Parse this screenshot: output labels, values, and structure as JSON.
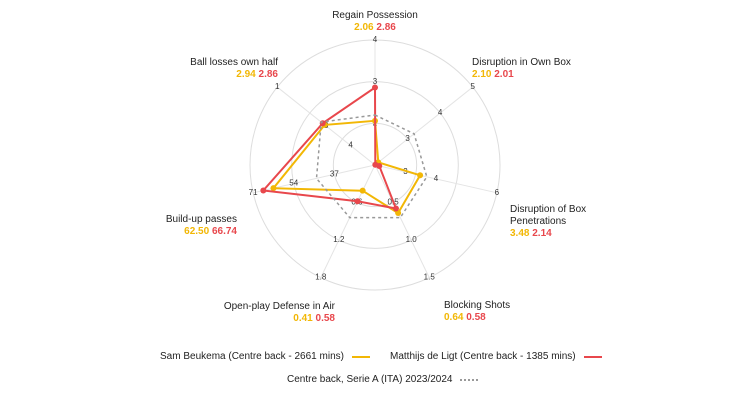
{
  "chart_data": {
    "type": "radar",
    "axes": [
      {
        "label": "Regain Possession",
        "lim": [
          1,
          4
        ],
        "ticks": [
          2,
          3,
          4
        ]
      },
      {
        "label": "Disruption in Own Box",
        "lim": [
          2,
          5
        ],
        "ticks": [
          3,
          4,
          5
        ]
      },
      {
        "label": "Disruption of Box Penetrations",
        "lim": [
          2,
          6
        ],
        "ticks": [
          3,
          4,
          6
        ]
      },
      {
        "label": "Blocking Shots",
        "lim": [
          0,
          1.5
        ],
        "ticks": [
          {
            "value": 0.5,
            "label": "0.5"
          },
          {
            "value": 1,
            "label": "1.0"
          },
          {
            "value": 1.5,
            "label": "1.5"
          }
        ]
      },
      {
        "label": "Open-play Defense in Air",
        "lim": [
          0,
          1.8
        ],
        "ticks": [
          0.6,
          1.2,
          1.8
        ]
      },
      {
        "label": "Build-up passes",
        "lim": [
          20,
          71
        ],
        "ticks": [
          37,
          54,
          71
        ]
      },
      {
        "label": "Ball losses own half",
        "lim": [
          5,
          1
        ],
        "ticks": [
          4,
          3,
          1
        ]
      }
    ],
    "series": [
      {
        "name": "Sam Beukema (Centre back - 2661 mins)",
        "color": "#f2b705",
        "style": "solid",
        "values": [
          2.06,
          2.1,
          3.48,
          0.64,
          0.41,
          62.5,
          2.94
        ],
        "value_labels": [
          "2.06",
          "2.10",
          "3.48",
          "0.64",
          "0.41",
          "62.50",
          "2.94"
        ]
      },
      {
        "name": "Matthijs de Ligt (Centre back - 1385 mins)",
        "color": "#e8474c",
        "style": "solid",
        "values": [
          2.86,
          2.01,
          2.14,
          0.58,
          0.58,
          66.74,
          2.86
        ],
        "value_labels": [
          "2.86",
          "2.01",
          "2.14",
          "0.58",
          "0.58",
          "66.74",
          "2.86"
        ]
      },
      {
        "name": "Centre back, Serie A (ITA) 2023/2024",
        "color": "#999999",
        "style": "dotted",
        "values": [
          2.2,
          3.2,
          3.7,
          0.7,
          0.84,
          44.5,
          2.8
        ]
      }
    ]
  }
}
